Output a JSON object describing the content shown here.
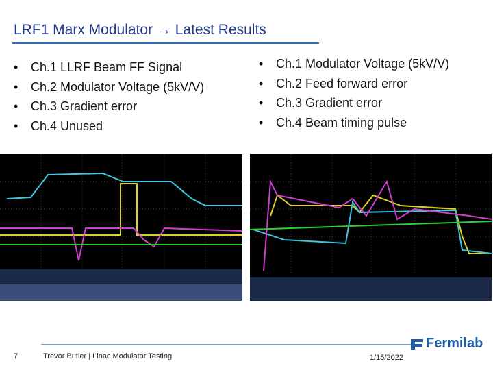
{
  "header": {
    "title": "LRF1 Marx Modulator → Latest Results"
  },
  "left_list": {
    "items": [
      "Ch.1 LLRF Beam FF Signal",
      "Ch.2 Modulator Voltage (5kV/V)",
      "Ch.3 Gradient error",
      "Ch.4 Unused"
    ]
  },
  "right_list": {
    "items": [
      "Ch.1 Modulator Voltage (5kV/V)",
      "Ch.2 Feed forward error",
      "Ch.3 Gradient error",
      "Ch.4 Beam timing pulse"
    ]
  },
  "footer": {
    "page_number": "7",
    "text": "Trevor Butler | Linac Modulator Testing",
    "date": "1/15/2022",
    "logo": "Fermilab"
  }
}
